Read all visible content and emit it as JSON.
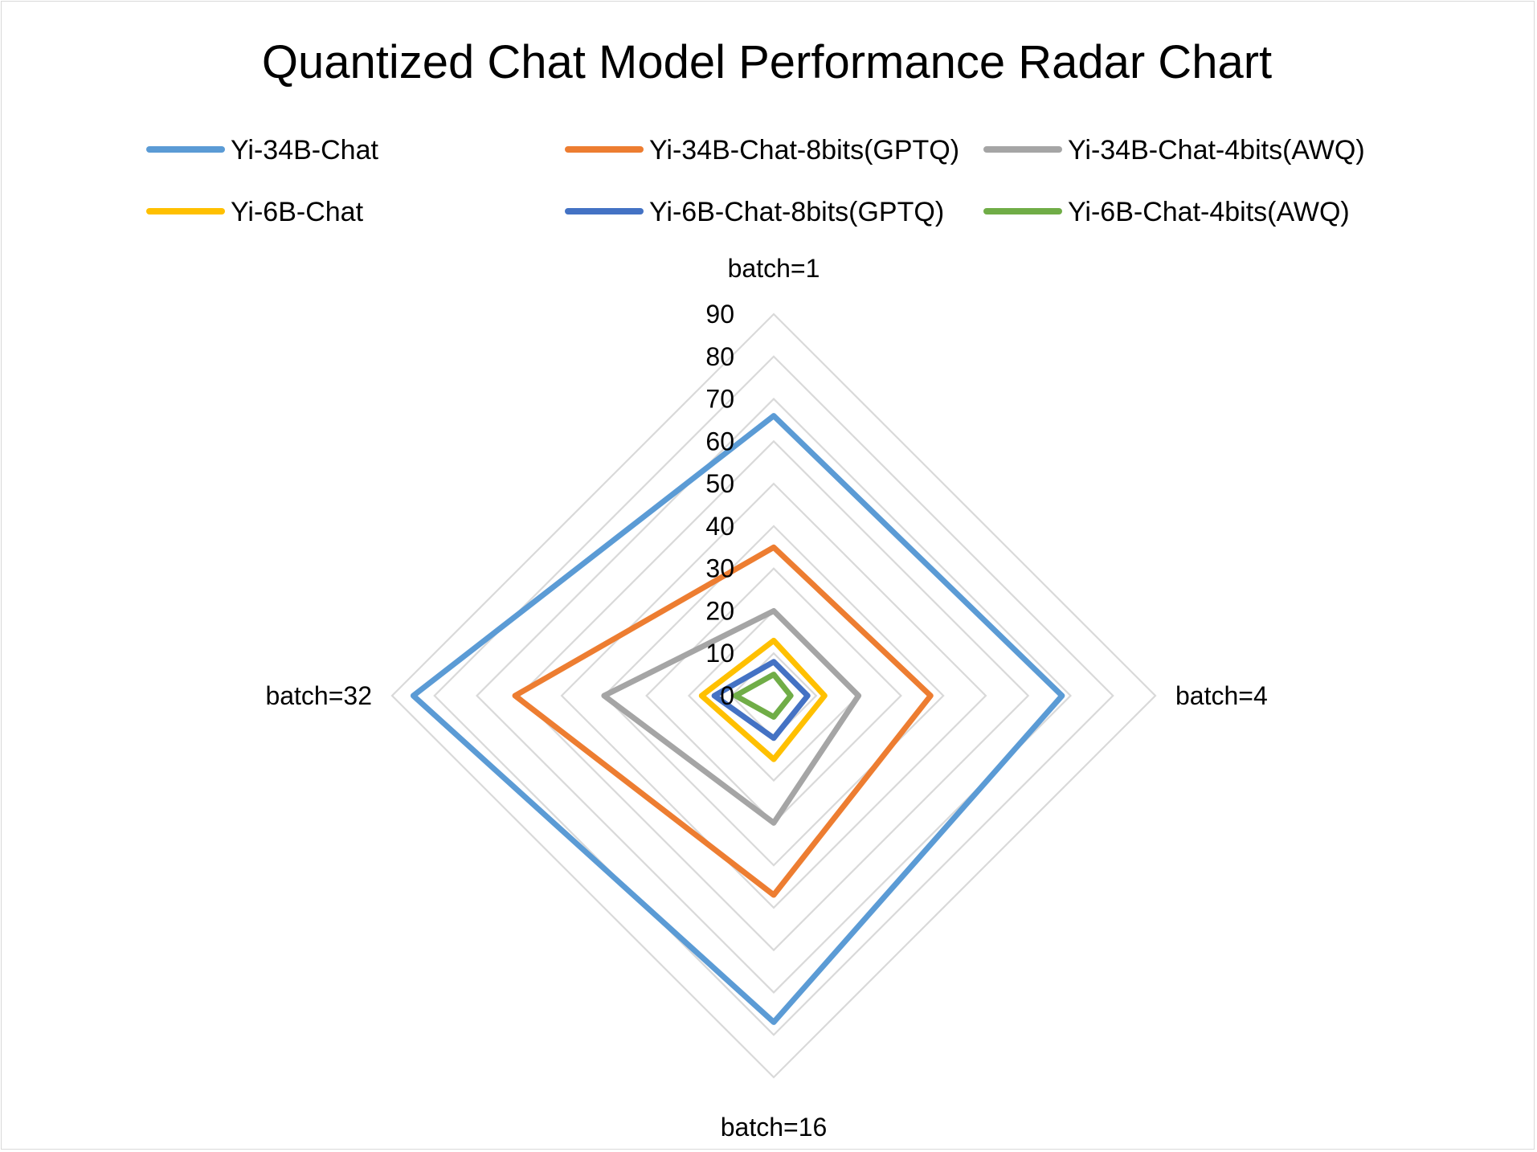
{
  "chart_data": {
    "type": "radar",
    "title": "Quantized Chat Model Performance Radar Chart",
    "axes": [
      "batch=1",
      "batch=4",
      "batch=16",
      "batch=32"
    ],
    "rmin": 0,
    "rmax": 90,
    "ticks": [
      0,
      10,
      20,
      30,
      40,
      50,
      60,
      70,
      80,
      90
    ],
    "grid": true,
    "legend_position": "top",
    "series": [
      {
        "name": "Yi-34B-Chat",
        "color": "#5B9BD5",
        "values": [
          66,
          68,
          77,
          85
        ]
      },
      {
        "name": "Yi-34B-Chat-8bits(GPTQ)",
        "color": "#ED7D31",
        "values": [
          35,
          37,
          47,
          61
        ]
      },
      {
        "name": "Yi-34B-Chat-4bits(AWQ)",
        "color": "#A5A5A5",
        "values": [
          20,
          20,
          30,
          40
        ]
      },
      {
        "name": "Yi-6B-Chat",
        "color": "#FFC000",
        "values": [
          13,
          12,
          15,
          17
        ]
      },
      {
        "name": "Yi-6B-Chat-8bits(GPTQ)",
        "color": "#4472C4",
        "values": [
          8,
          8,
          10,
          14
        ]
      },
      {
        "name": "Yi-6B-Chat-4bits(AWQ)",
        "color": "#70AD47",
        "values": [
          5,
          4,
          5,
          9
        ]
      }
    ]
  }
}
